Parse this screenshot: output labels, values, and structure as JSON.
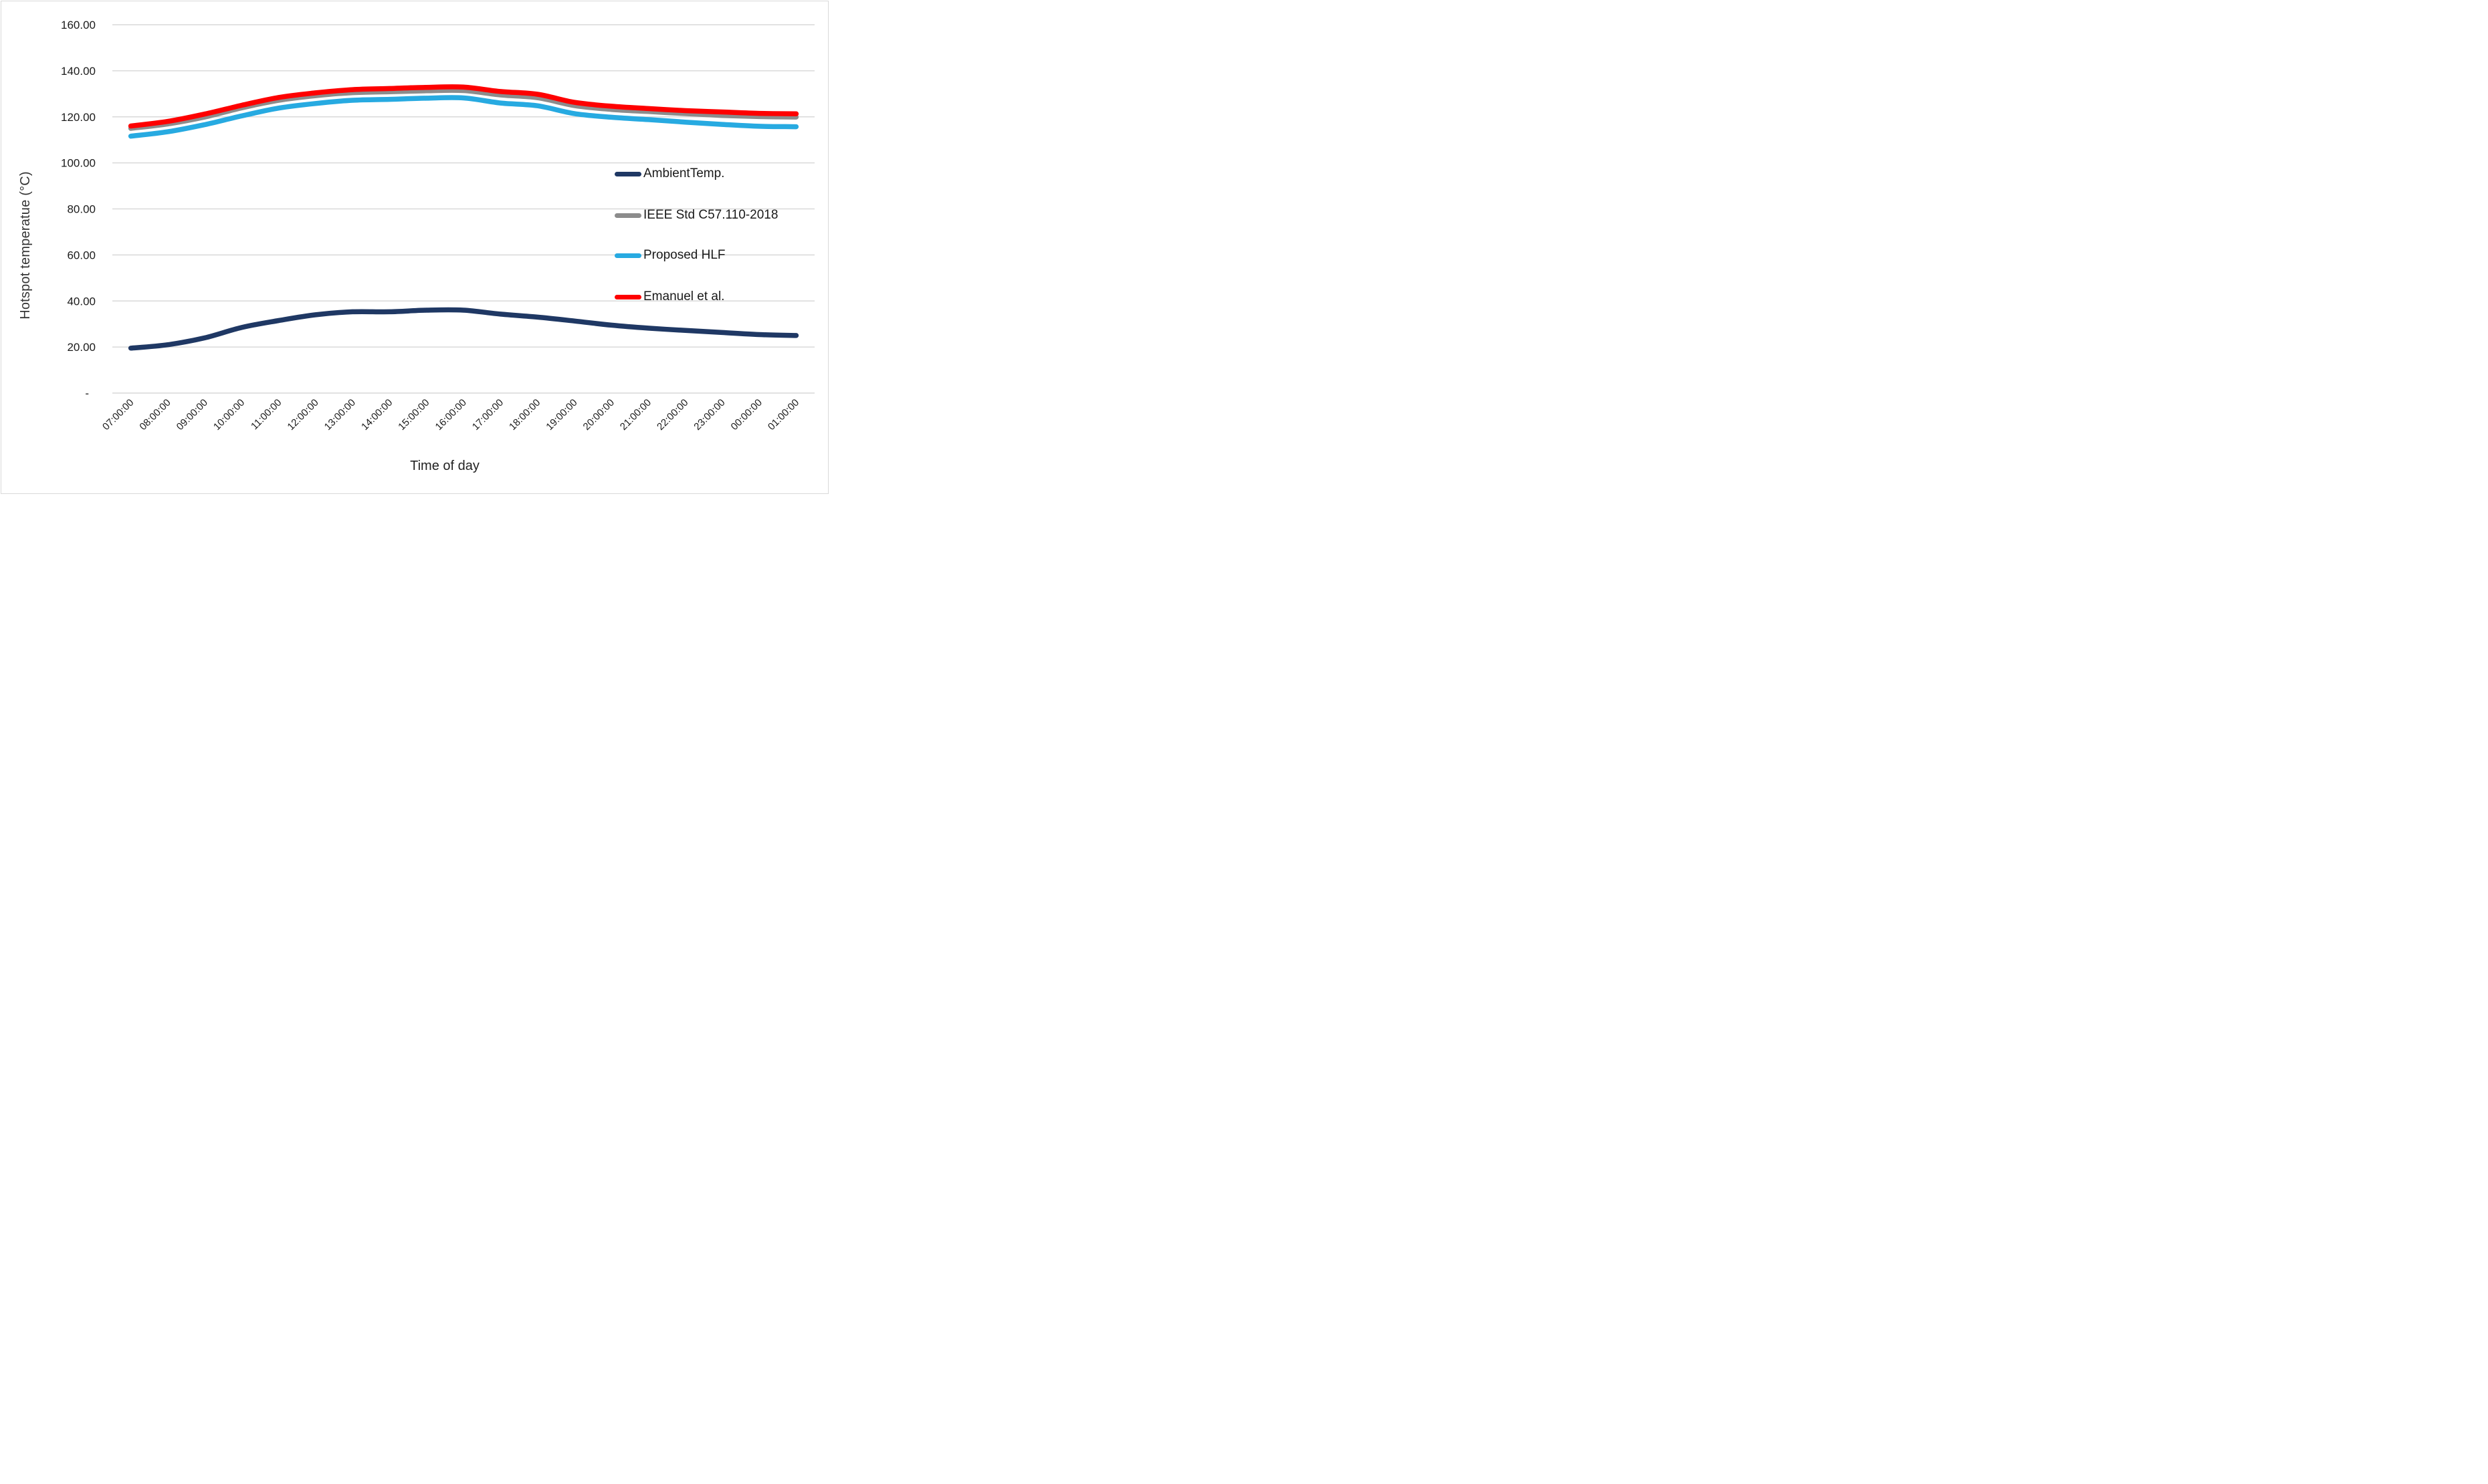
{
  "chart_data": {
    "type": "line",
    "title": "",
    "xlabel": "Time of day",
    "ylabel": "Hotspot temperatue (°C)",
    "x": [
      "07:00:00",
      "08:00:00",
      "09:00:00",
      "10:00:00",
      "11:00:00",
      "12:00:00",
      "13:00:00",
      "14:00:00",
      "15:00:00",
      "16:00:00",
      "17:00:00",
      "18:00:00",
      "19:00:00",
      "20:00:00",
      "21:00:00",
      "22:00:00",
      "23:00:00",
      "00:00:00",
      "01:00:00"
    ],
    "y_tick_labels": [
      "160.00",
      "140.00",
      "120.00",
      "100.00",
      "80.00",
      "60.00",
      "40.00",
      "20.00",
      "-"
    ],
    "y_tick_values": [
      160,
      140,
      120,
      100,
      80,
      60,
      40,
      20,
      0
    ],
    "ylim": [
      0,
      160
    ],
    "grid": true,
    "grid_color": "#d9d9d9",
    "legend_position": "inside-center-right",
    "smoothed_lines": true,
    "series": [
      {
        "name": "AmbientTemp.",
        "color": "#1F3864",
        "values": [
          19.5,
          21,
          24,
          28.5,
          31.5,
          34,
          35.3,
          35.3,
          36,
          36,
          34.3,
          33,
          31.3,
          29.5,
          28.2,
          27.2,
          26.3,
          25.4,
          25
        ]
      },
      {
        "name": "IEEE Std C57.110-2018",
        "color": "#8C8C8C",
        "values": [
          115,
          116.9,
          119.9,
          123.9,
          127.2,
          129.2,
          130.5,
          130.9,
          131.3,
          131.4,
          129.5,
          128.3,
          124.9,
          123.2,
          122.3,
          121.4,
          120.6,
          120.1,
          119.9
        ]
      },
      {
        "name": "Proposed HLF",
        "color": "#27AAE1",
        "values": [
          111.6,
          113.5,
          116.6,
          120.4,
          123.8,
          125.8,
          127.2,
          127.6,
          128.1,
          128.2,
          126,
          124.8,
          121.4,
          119.8,
          118.8,
          117.7,
          116.7,
          115.9,
          115.7
        ]
      },
      {
        "name": "Emanuel et al.",
        "color": "#FE0000",
        "values": [
          116,
          118,
          121.2,
          125,
          128.4,
          130.4,
          131.8,
          132.3,
          132.8,
          132.9,
          131,
          129.8,
          126.3,
          124.6,
          123.6,
          122.7,
          122.1,
          121.5,
          121.3
        ]
      }
    ]
  }
}
